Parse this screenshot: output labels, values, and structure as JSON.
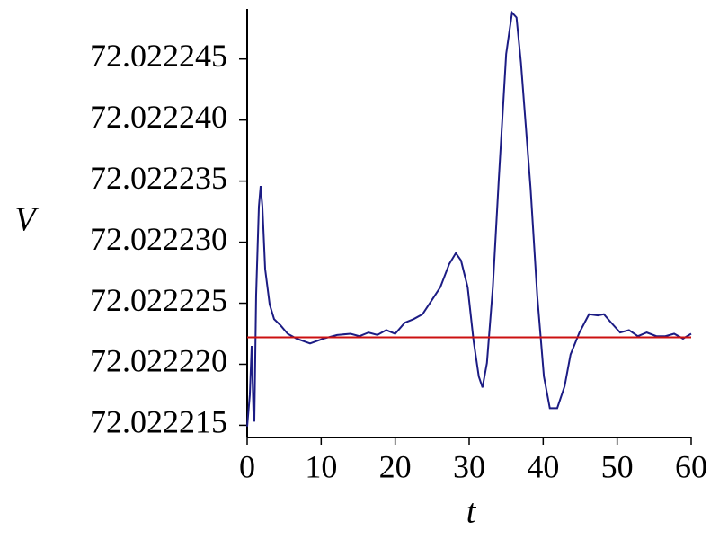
{
  "chart_data": {
    "type": "line",
    "xlabel": "t",
    "ylabel": "V",
    "xlim": [
      0,
      60
    ],
    "xticks": [
      0,
      10,
      20,
      30,
      40,
      50,
      60
    ],
    "ylim": [
      72.022214,
      72.0222491
    ],
    "yticks": [
      72.022215,
      {
        "value": 72.02222,
        "label": "72.022220"
      },
      72.022225,
      {
        "value": 72.02223,
        "label": "72.022230"
      },
      72.022235,
      {
        "value": 72.02224,
        "label": "72.022240"
      },
      72.022245
    ],
    "series": [
      {
        "color": "#1c1c84",
        "x": [
          0,
          0.36,
          0.61,
          0.85,
          0.97,
          1.21,
          1.58,
          1.82,
          2.06,
          2.43,
          3.04,
          3.64,
          4.49,
          5.47,
          6.68,
          8.5,
          10.3,
          12.15,
          13.97,
          15.18,
          16.4,
          17.6,
          18.8,
          20.0,
          21.3,
          22.5,
          23.7,
          24.9,
          26.1,
          27.3,
          28.2,
          28.9,
          29.8,
          30.6,
          31.3,
          31.8,
          32.4,
          33.2,
          34.0,
          35.0,
          35.8,
          36.4,
          37.0,
          38.3,
          39.2,
          40.1,
          40.9,
          41.9,
          42.9,
          43.7,
          44.9,
          46.2,
          47.4,
          48.2,
          49.2,
          50.4,
          51.6,
          52.8,
          54.0,
          55.3,
          56.5,
          57.7,
          58.9,
          60
        ],
        "values": [
          72.0222149,
          72.0222175,
          72.0222215,
          72.022216,
          72.0222153,
          72.0222256,
          72.0222329,
          72.0222346,
          72.0222329,
          72.0222278,
          72.0222249,
          72.0222237,
          72.0222232,
          72.0222225,
          72.0222221,
          72.0222217,
          72.0222221,
          72.0222224,
          72.0222225,
          72.0222223,
          72.0222226,
          72.0222224,
          72.0222228,
          72.0222225,
          72.0222234,
          72.0222237,
          72.0222241,
          72.0222252,
          72.0222263,
          72.0222282,
          72.0222291,
          72.0222285,
          72.0222263,
          72.0222219,
          72.022219,
          72.0222181,
          72.0222201,
          72.0222263,
          72.0222351,
          72.0222454,
          72.0222488,
          72.0222484,
          72.0222447,
          72.0222344,
          72.0222256,
          72.022219,
          72.0222164,
          72.0222164,
          72.0222182,
          72.0222208,
          72.0222226,
          72.0222241,
          72.022224,
          72.0222241,
          72.0222234,
          72.0222226,
          72.0222228,
          72.0222223,
          72.0222226,
          72.0222223,
          72.0222223,
          72.0222225,
          72.0222221,
          72.0222225
        ]
      },
      {
        "color": "#cc1010",
        "x": [
          0,
          60
        ],
        "values": [
          72.0222222,
          72.0222222
        ]
      }
    ]
  }
}
